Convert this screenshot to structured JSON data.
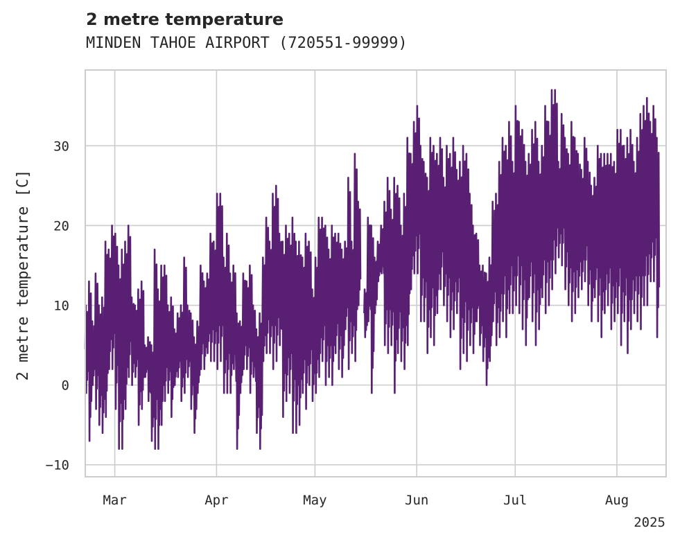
{
  "chart_data": {
    "type": "line",
    "title": "2 metre temperature",
    "subtitle": "MINDEN TAHOE AIRPORT (720551-99999)",
    "ylabel": "2 metre temperature [C]",
    "xlabel": "",
    "year_label": "2025",
    "ylim": [
      -11.5,
      39.5
    ],
    "xlim": [
      "2025-02-20",
      "2025-08-16"
    ],
    "yticks": [
      -10,
      0,
      10,
      20,
      30
    ],
    "xticks": [
      {
        "label": "Mar",
        "date": "2025-03-01"
      },
      {
        "label": "Apr",
        "date": "2025-04-01"
      },
      {
        "label": "May",
        "date": "2025-05-01"
      },
      {
        "label": "Jun",
        "date": "2025-06-01"
      },
      {
        "label": "Jul",
        "date": "2025-07-01"
      },
      {
        "label": "Aug",
        "date": "2025-08-01"
      }
    ],
    "grid": true,
    "series": [
      {
        "color": "#581f72",
        "points_daily_min_max": [
          [
            "2025-02-20",
            -1,
            10
          ],
          [
            "2025-02-21",
            -7,
            13
          ],
          [
            "2025-02-22",
            0,
            8
          ],
          [
            "2025-02-23",
            -3,
            14
          ],
          [
            "2025-02-24",
            -5,
            10
          ],
          [
            "2025-02-25",
            -6,
            11
          ],
          [
            "2025-02-26",
            -4,
            18
          ],
          [
            "2025-02-27",
            2,
            17
          ],
          [
            "2025-02-28",
            2,
            20
          ],
          [
            "2025-03-01",
            -3,
            19
          ],
          [
            "2025-03-02",
            -8,
            15
          ],
          [
            "2025-03-03",
            -8,
            17
          ],
          [
            "2025-03-04",
            -3,
            18
          ],
          [
            "2025-03-05",
            1,
            20
          ],
          [
            "2025-03-06",
            0,
            11
          ],
          [
            "2025-03-07",
            1,
            10
          ],
          [
            "2025-03-08",
            -5,
            12
          ],
          [
            "2025-03-09",
            -3,
            13
          ],
          [
            "2025-03-10",
            1,
            5
          ],
          [
            "2025-03-11",
            -2,
            6
          ],
          [
            "2025-03-12",
            -7,
            5
          ],
          [
            "2025-03-13",
            -8,
            17
          ],
          [
            "2025-03-14",
            -8,
            12
          ],
          [
            "2025-03-15",
            -5,
            15
          ],
          [
            "2025-03-16",
            -2,
            15
          ],
          [
            "2025-03-17",
            -1,
            10
          ],
          [
            "2025-03-18",
            -4,
            11
          ],
          [
            "2025-03-19",
            0,
            7
          ],
          [
            "2025-03-20",
            1,
            9
          ],
          [
            "2025-03-21",
            -2,
            10
          ],
          [
            "2025-03-22",
            -1,
            16
          ],
          [
            "2025-03-23",
            1,
            10
          ],
          [
            "2025-03-24",
            -3,
            9
          ],
          [
            "2025-03-25",
            -6,
            6
          ],
          [
            "2025-03-26",
            -1,
            8
          ],
          [
            "2025-03-27",
            2,
            15
          ],
          [
            "2025-03-28",
            2,
            13
          ],
          [
            "2025-03-29",
            4,
            14
          ],
          [
            "2025-03-30",
            3,
            19
          ],
          [
            "2025-03-31",
            3,
            18
          ],
          [
            "2025-04-01",
            2,
            24
          ],
          [
            "2025-04-02",
            3,
            24
          ],
          [
            "2025-04-03",
            -1,
            16
          ],
          [
            "2025-04-04",
            -1,
            19
          ],
          [
            "2025-04-05",
            -1,
            14
          ],
          [
            "2025-04-06",
            2,
            15
          ],
          [
            "2025-04-07",
            -8,
            9
          ],
          [
            "2025-04-08",
            -1,
            8
          ],
          [
            "2025-04-09",
            2,
            14
          ],
          [
            "2025-04-10",
            2,
            13
          ],
          [
            "2025-04-11",
            -1,
            15
          ],
          [
            "2025-04-12",
            1,
            10
          ],
          [
            "2025-04-13",
            -6,
            7
          ],
          [
            "2025-04-14",
            -8,
            9
          ],
          [
            "2025-04-15",
            3,
            16
          ],
          [
            "2025-04-16",
            4,
            21
          ],
          [
            "2025-04-17",
            4,
            18
          ],
          [
            "2025-04-18",
            2,
            24
          ],
          [
            "2025-04-19",
            3,
            25
          ],
          [
            "2025-04-20",
            5,
            19
          ],
          [
            "2025-04-21",
            -4,
            18
          ],
          [
            "2025-04-22",
            -2,
            20
          ],
          [
            "2025-04-23",
            -1,
            19
          ],
          [
            "2025-04-24",
            -6,
            21
          ],
          [
            "2025-04-25",
            -6,
            18
          ],
          [
            "2025-04-26",
            -5,
            18
          ],
          [
            "2025-04-27",
            -1,
            16
          ],
          [
            "2025-04-28",
            -3,
            19
          ],
          [
            "2025-04-29",
            0,
            18
          ],
          [
            "2025-04-30",
            -2,
            12
          ],
          [
            "2025-05-01",
            -1,
            16
          ],
          [
            "2025-05-02",
            1,
            21
          ],
          [
            "2025-05-03",
            3,
            21
          ],
          [
            "2025-05-04",
            0,
            20
          ],
          [
            "2025-05-05",
            1,
            17
          ],
          [
            "2025-05-06",
            0,
            20
          ],
          [
            "2025-05-07",
            4,
            19
          ],
          [
            "2025-05-08",
            2,
            19
          ],
          [
            "2025-05-09",
            1,
            17
          ],
          [
            "2025-05-10",
            7,
            18
          ],
          [
            "2025-05-11",
            2,
            26
          ],
          [
            "2025-05-12",
            4,
            18
          ],
          [
            "2025-05-13",
            3,
            29
          ],
          [
            "2025-05-14",
            10,
            23
          ],
          [
            "2025-05-16",
            6,
            12
          ],
          [
            "2025-05-17",
            8,
            21
          ],
          [
            "2025-05-18",
            -1,
            20
          ],
          [
            "2025-05-19",
            9,
            16
          ],
          [
            "2025-05-20",
            13,
            18
          ],
          [
            "2025-05-21",
            14,
            20
          ],
          [
            "2025-05-22",
            5,
            23
          ],
          [
            "2025-05-23",
            4,
            26
          ],
          [
            "2025-05-24",
            5,
            22
          ],
          [
            "2025-05-25",
            -1,
            26
          ],
          [
            "2025-05-26",
            4,
            25
          ],
          [
            "2025-05-27",
            3,
            20
          ],
          [
            "2025-05-28",
            2,
            24
          ],
          [
            "2025-05-29",
            5,
            31
          ],
          [
            "2025-05-30",
            12,
            29
          ],
          [
            "2025-05-31",
            14,
            33
          ],
          [
            "2025-06-01",
            14,
            35
          ],
          [
            "2025-06-02",
            8,
            30
          ],
          [
            "2025-06-03",
            8,
            28
          ],
          [
            "2025-06-04",
            4,
            26
          ],
          [
            "2025-06-05",
            6,
            31
          ],
          [
            "2025-06-06",
            5,
            30
          ],
          [
            "2025-06-07",
            9,
            29
          ],
          [
            "2025-06-08",
            12,
            31
          ],
          [
            "2025-06-09",
            10,
            26
          ],
          [
            "2025-06-10",
            8,
            30
          ],
          [
            "2025-06-11",
            6,
            29
          ],
          [
            "2025-06-12",
            7,
            31
          ],
          [
            "2025-06-13",
            9,
            27
          ],
          [
            "2025-06-14",
            2,
            28
          ],
          [
            "2025-06-15",
            4,
            30
          ],
          [
            "2025-06-16",
            3,
            29
          ],
          [
            "2025-06-17",
            5,
            24
          ],
          [
            "2025-06-18",
            4,
            20
          ],
          [
            "2025-06-19",
            8,
            19
          ],
          [
            "2025-06-20",
            5,
            15
          ],
          [
            "2025-06-21",
            3,
            15
          ],
          [
            "2025-06-22",
            0,
            14
          ],
          [
            "2025-06-23",
            3,
            16
          ],
          [
            "2025-06-24",
            8,
            23
          ],
          [
            "2025-06-25",
            5,
            24
          ],
          [
            "2025-06-26",
            6,
            28
          ],
          [
            "2025-06-27",
            8,
            31
          ],
          [
            "2025-06-28",
            6,
            30
          ],
          [
            "2025-06-29",
            9,
            33
          ],
          [
            "2025-06-30",
            9,
            28
          ],
          [
            "2025-07-01",
            10,
            35
          ],
          [
            "2025-07-02",
            9,
            33
          ],
          [
            "2025-07-03",
            7,
            32
          ],
          [
            "2025-07-04",
            5,
            28
          ],
          [
            "2025-07-05",
            11,
            29
          ],
          [
            "2025-07-06",
            8,
            32
          ],
          [
            "2025-07-07",
            5,
            33
          ],
          [
            "2025-07-08",
            7,
            28
          ],
          [
            "2025-07-09",
            11,
            30
          ],
          [
            "2025-07-10",
            9,
            35
          ],
          [
            "2025-07-11",
            10,
            33
          ],
          [
            "2025-07-12",
            12,
            37
          ],
          [
            "2025-07-13",
            14,
            37
          ],
          [
            "2025-07-14",
            16,
            28
          ],
          [
            "2025-07-15",
            15,
            34
          ],
          [
            "2025-07-16",
            12,
            31
          ],
          [
            "2025-07-17",
            10,
            29
          ],
          [
            "2025-07-18",
            8,
            33
          ],
          [
            "2025-07-19",
            9,
            31
          ],
          [
            "2025-07-20",
            11,
            29
          ],
          [
            "2025-07-21",
            12,
            27
          ],
          [
            "2025-07-22",
            13,
            31
          ],
          [
            "2025-07-23",
            10,
            28
          ],
          [
            "2025-07-24",
            8,
            25
          ],
          [
            "2025-07-25",
            11,
            26
          ],
          [
            "2025-07-26",
            8,
            30
          ],
          [
            "2025-07-27",
            6,
            29
          ],
          [
            "2025-07-28",
            9,
            29
          ],
          [
            "2025-07-29",
            10,
            29
          ],
          [
            "2025-07-30",
            7,
            29
          ],
          [
            "2025-07-31",
            8,
            28
          ],
          [
            "2025-08-01",
            9,
            32
          ],
          [
            "2025-08-02",
            5,
            32
          ],
          [
            "2025-08-03",
            8,
            30
          ],
          [
            "2025-08-04",
            4,
            31
          ],
          [
            "2025-08-05",
            7,
            32
          ],
          [
            "2025-08-06",
            9,
            28
          ],
          [
            "2025-08-07",
            8,
            31
          ],
          [
            "2025-08-08",
            7,
            34
          ],
          [
            "2025-08-09",
            10,
            35
          ],
          [
            "2025-08-10",
            10,
            36
          ],
          [
            "2025-08-11",
            13,
            33
          ],
          [
            "2025-08-12",
            13,
            35
          ],
          [
            "2025-08-13",
            6,
            31
          ]
        ]
      }
    ]
  }
}
